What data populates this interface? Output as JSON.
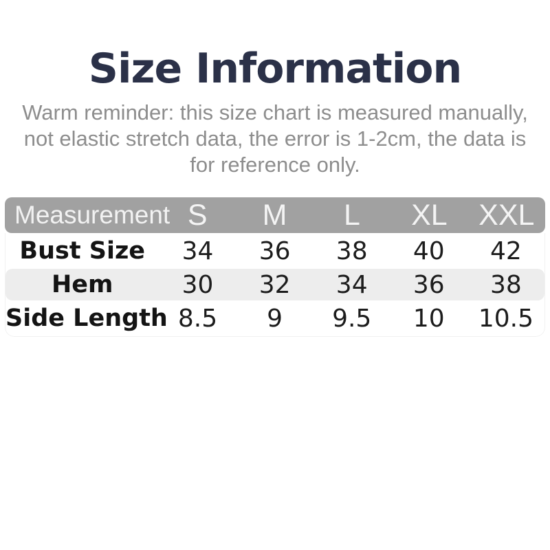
{
  "page": {
    "title": "Size Information",
    "reminder_lines": [
      "Warm reminder: this size chart is measured manually,",
      "not elastic stretch data, the error is 1-2cm, the data is",
      "for reference only."
    ]
  },
  "table": {
    "header": {
      "label": "Measurement",
      "sizes": [
        "S",
        "M",
        "L",
        "XL",
        "XXL"
      ]
    },
    "rows": [
      {
        "label": "Bust Size",
        "values": [
          "34",
          "36",
          "38",
          "40",
          "42"
        ]
      },
      {
        "label": "Hem",
        "values": [
          "30",
          "32",
          "34",
          "36",
          "38"
        ]
      },
      {
        "label": "Side Length",
        "values": [
          "8.5",
          "9",
          "9.5",
          "10",
          "10.5"
        ]
      }
    ]
  },
  "colors": {
    "title_text": "#2b3148",
    "reminder_text": "#8d8d8d",
    "header_bg": "#a1a1a1",
    "header_text": "#f2f2f2",
    "alt_row_bg": "#ededed",
    "cell_text": "#1c1c1c",
    "page_bg": "#ffffff"
  },
  "chart_data": {
    "type": "table",
    "title": "Size Information",
    "subtitle": "Warm reminder: this size chart is measured manually, not elastic stretch data, the error is 1-2cm, the data is for reference only.",
    "columns": [
      "Measurement",
      "S",
      "M",
      "L",
      "XL",
      "XXL"
    ],
    "rows": [
      {
        "measurement": "Bust Size",
        "S": 34,
        "M": 36,
        "L": 38,
        "XL": 40,
        "XXL": 42
      },
      {
        "measurement": "Hem",
        "S": 30,
        "M": 32,
        "L": 34,
        "XL": 36,
        "XXL": 38
      },
      {
        "measurement": "Side Length",
        "S": 8.5,
        "M": 9,
        "L": 9.5,
        "XL": 10,
        "XXL": 10.5
      }
    ]
  }
}
